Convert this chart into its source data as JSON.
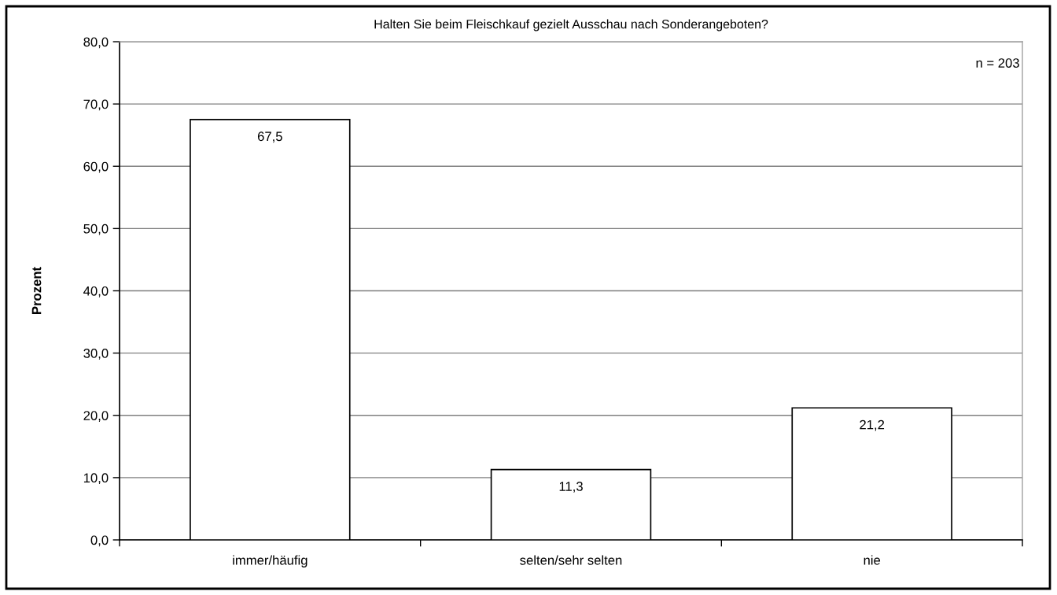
{
  "chart_data": {
    "type": "bar",
    "title": "Halten Sie beim Fleischkauf gezielt Ausschau nach Sonderangeboten?",
    "ylabel": "Prozent",
    "categories": [
      "immer/häufig",
      "selten/sehr selten",
      "nie"
    ],
    "values": [
      67.5,
      11.3,
      21.2
    ],
    "value_labels": [
      "67,5",
      "11,3",
      "21,2"
    ],
    "color": "#ffffff",
    "ylim": [
      0,
      80
    ],
    "yticks": [
      {
        "value": 0,
        "label": "0,0"
      },
      {
        "value": 10,
        "label": "10,0"
      },
      {
        "value": 20,
        "label": "20,0"
      },
      {
        "value": 30,
        "label": "30,0"
      },
      {
        "value": 40,
        "label": "40,0"
      },
      {
        "value": 50,
        "label": "50,0"
      },
      {
        "value": 60,
        "label": "60,0"
      },
      {
        "value": 70,
        "label": "70,0"
      },
      {
        "value": 80,
        "label": "80,0"
      }
    ],
    "grid": "y",
    "annotations": [
      "n = 203"
    ]
  }
}
